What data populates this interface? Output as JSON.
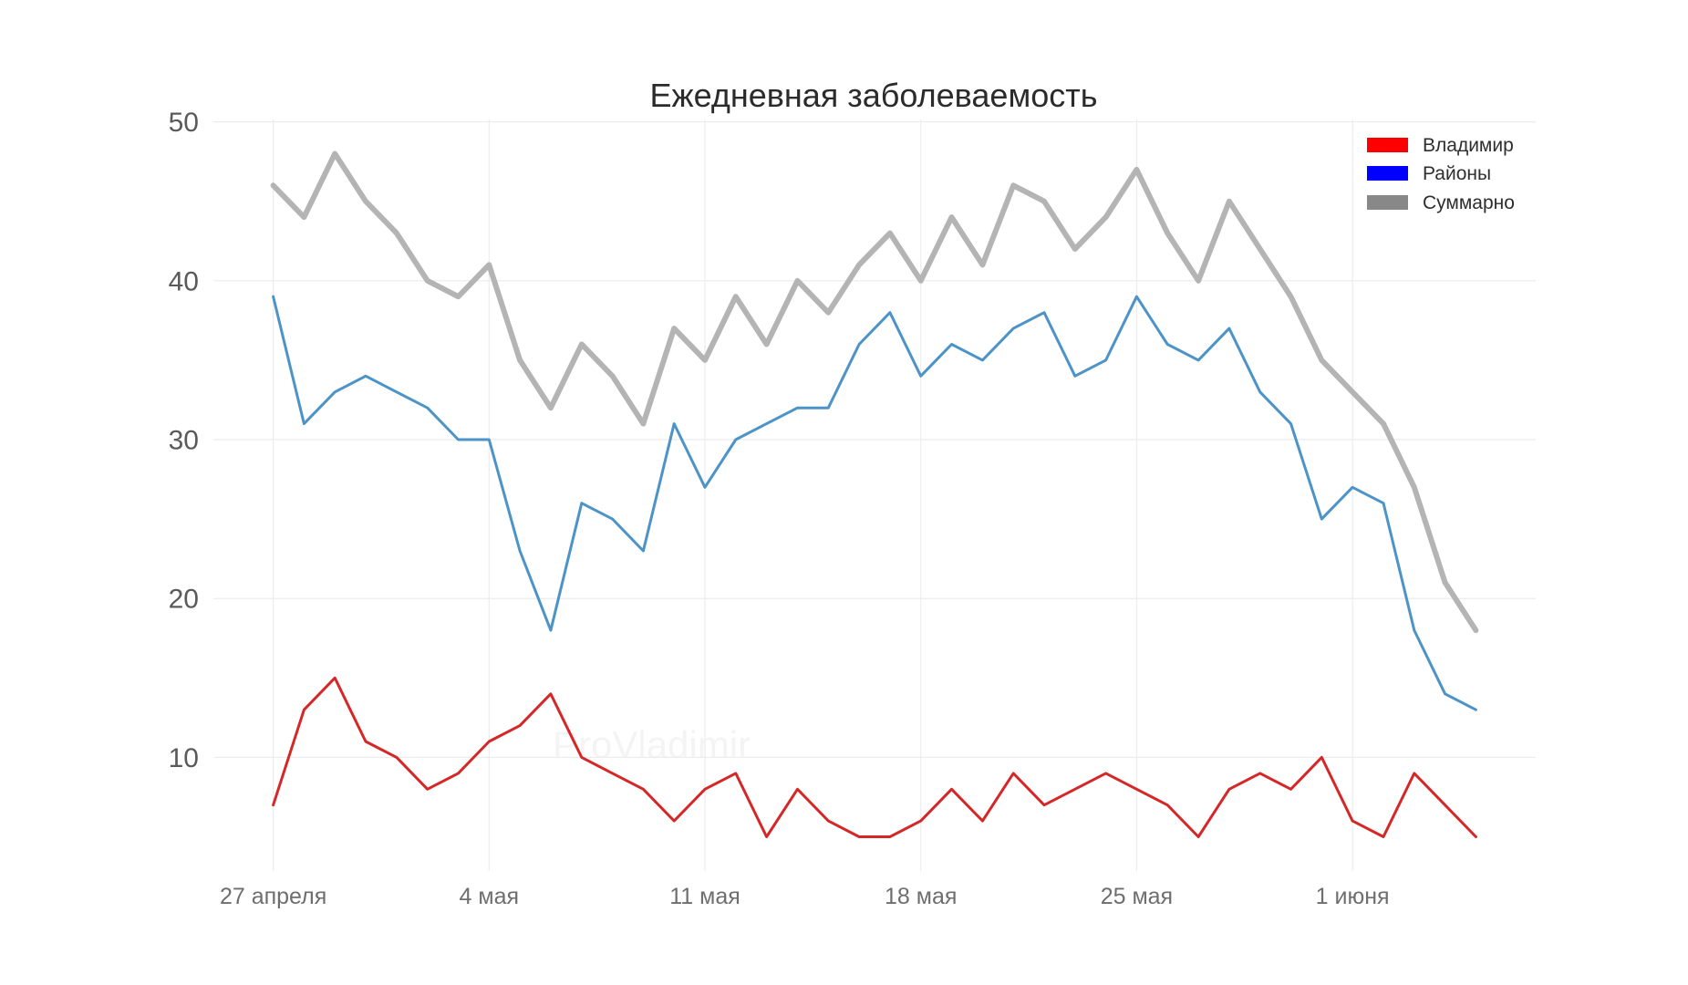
{
  "chart_data": {
    "type": "line",
    "title": "Ежедневная заболеваемость",
    "xlabel": "",
    "ylabel": "",
    "x": [
      0,
      1,
      2,
      3,
      4,
      5,
      6,
      7,
      8,
      9,
      10,
      11,
      12,
      13,
      14,
      15,
      16,
      17,
      18,
      19,
      20,
      21,
      22,
      23,
      24,
      25,
      26,
      27,
      28,
      29,
      30,
      31,
      32,
      33,
      34,
      35,
      36,
      37,
      38,
      39
    ],
    "xticks": [
      {
        "value": 0,
        "label": "27 апреля"
      },
      {
        "value": 7,
        "label": "4 мая"
      },
      {
        "value": 14,
        "label": "11 мая"
      },
      {
        "value": 21,
        "label": "18 мая"
      },
      {
        "value": 28,
        "label": "25 мая"
      },
      {
        "value": 35,
        "label": "1 июня"
      }
    ],
    "yticks": [
      10,
      20,
      30,
      40,
      50
    ],
    "xlim": [
      -1.94,
      40.94
    ],
    "ylim": [
      2.85,
      50.15
    ],
    "grid": true,
    "legend_position": "top-right",
    "series": [
      {
        "name": "Владимир",
        "color": "#d62728",
        "legend_color": "#ff0000",
        "values": [
          7,
          13,
          15,
          11,
          10,
          8,
          9,
          11,
          12,
          14,
          10,
          9,
          8,
          6,
          8,
          9,
          5,
          8,
          6,
          5,
          5,
          6,
          8,
          6,
          9,
          7,
          8,
          9,
          8,
          7,
          5,
          8,
          9,
          8,
          10,
          6,
          5,
          9,
          7,
          5
        ]
      },
      {
        "name": "Районы",
        "color": "#4c93c7",
        "legend_color": "#0000ff",
        "values": [
          39,
          31,
          33,
          34,
          33,
          32,
          30,
          30,
          23,
          18,
          26,
          25,
          23,
          31,
          27,
          30,
          31,
          32,
          32,
          36,
          38,
          34,
          36,
          35,
          37,
          38,
          34,
          35,
          39,
          36,
          35,
          37,
          33,
          31,
          25,
          27,
          26,
          18,
          14,
          13
        ]
      },
      {
        "name": "Суммарно",
        "color": "#b4b4b4",
        "legend_color": "#888888",
        "values": [
          46,
          44,
          48,
          45,
          43,
          40,
          39,
          41,
          35,
          32,
          36,
          34,
          31,
          37,
          35,
          39,
          36,
          40,
          38,
          41,
          43,
          40,
          44,
          41,
          46,
          45,
          42,
          44,
          47,
          43,
          40,
          45,
          42,
          39,
          35,
          33,
          31,
          27,
          21,
          18
        ]
      }
    ]
  },
  "watermark": "ProVladimir"
}
